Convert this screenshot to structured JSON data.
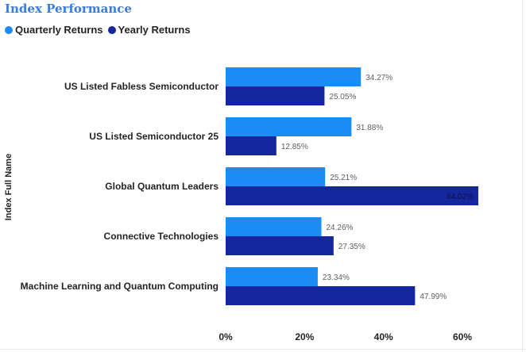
{
  "chart_data": {
    "type": "bar",
    "orientation": "horizontal",
    "title": "Index Performance",
    "ylabel": "Index Full Name",
    "xlabel": "",
    "categories": [
      "US Listed Fabless Semiconductor",
      "US Listed Semiconductor 25",
      "Global Quantum Leaders",
      "Connective Technologies",
      "Machine Learning and Quantum Computing"
    ],
    "series": [
      {
        "name": "Quarterly Returns",
        "color": "#1c8cf5",
        "values": [
          34.27,
          31.88,
          25.21,
          24.26,
          23.34
        ],
        "labels": [
          "34.27%",
          "31.88%",
          "25.21%",
          "24.26%",
          "23.34%"
        ]
      },
      {
        "name": "Yearly Returns",
        "color": "#14279e",
        "values": [
          25.05,
          12.85,
          64.02,
          27.35,
          47.99
        ],
        "labels": [
          "25.05%",
          "12.85%",
          "64.02%",
          "27.35%",
          "47.99%"
        ]
      }
    ],
    "xlim": [
      0,
      60
    ],
    "x_ticks": [
      0,
      20,
      40,
      60
    ],
    "x_tick_labels": [
      "0%",
      "20%",
      "40%",
      "60%"
    ],
    "legend_position": "top-left",
    "grid": false
  }
}
